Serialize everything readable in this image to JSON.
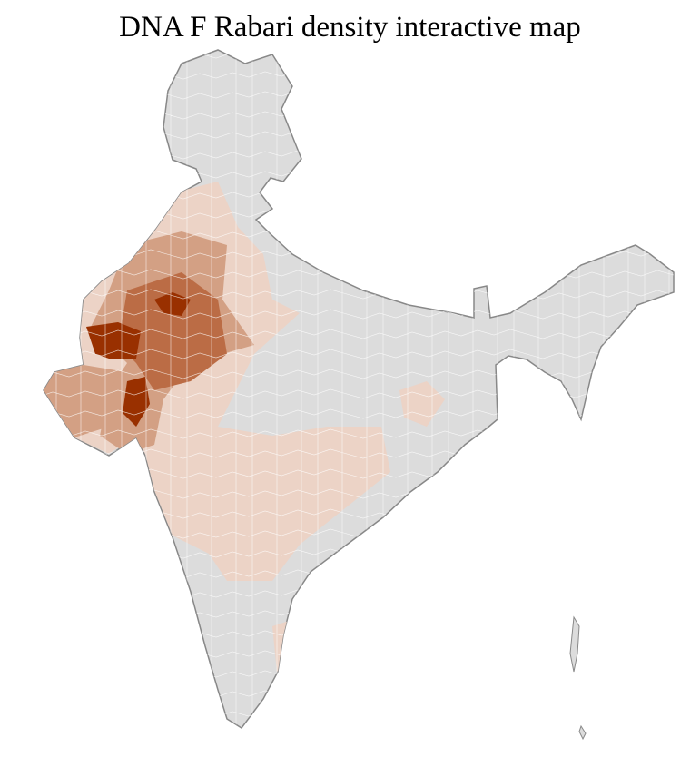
{
  "title": "DNA F Rabari density interactive map",
  "colors": {
    "no_data": "#dcdcdc",
    "very_low": "#ecd3c6",
    "low": "#d3a084",
    "medium": "#bb6c45",
    "high": "#993000",
    "district_border": "#ffffff",
    "state_border": "#888888"
  }
}
